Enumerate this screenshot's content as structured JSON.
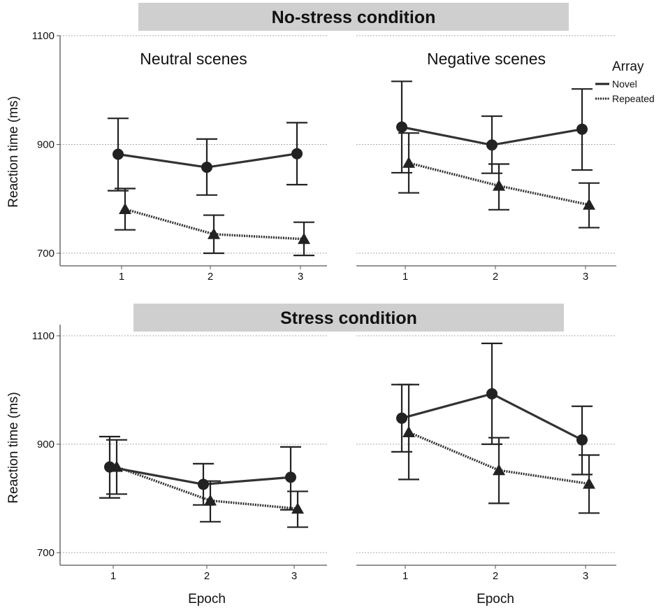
{
  "banners": [
    "No-stress condition",
    "Stress condition"
  ],
  "legend": {
    "title": "Array",
    "entries": [
      "Novel",
      "Repeated"
    ]
  },
  "y_axis_label": "Reaction time (ms)",
  "x_axis_label": "Epoch",
  "colors": {
    "novel": "#333333",
    "repeated": "#333333",
    "banner": "#cfcfcf",
    "grid": "#aaaaaa",
    "axis": "#555555"
  },
  "chart_data": [
    {
      "type": "line",
      "condition": "No-stress condition",
      "title": "Neutral scenes",
      "x": [
        1,
        2,
        3
      ],
      "ylim": [
        700,
        1100
      ],
      "yticks": [
        700,
        900,
        1100
      ],
      "series": [
        {
          "name": "Novel",
          "style": "solid",
          "marker": "circle",
          "values": [
            882,
            858,
            883
          ],
          "err_low": [
            815,
            807,
            826
          ],
          "err_high": [
            948,
            910,
            940
          ]
        },
        {
          "name": "Repeated",
          "style": "dotted",
          "marker": "triangle",
          "values": [
            781,
            735,
            726
          ],
          "err_low": [
            743,
            700,
            696
          ],
          "err_high": [
            819,
            770,
            757
          ]
        }
      ]
    },
    {
      "type": "line",
      "condition": "No-stress condition",
      "title": "Negative scenes",
      "x": [
        1,
        2,
        3
      ],
      "ylim": [
        700,
        1100
      ],
      "yticks": [
        700,
        900,
        1100
      ],
      "series": [
        {
          "name": "Novel",
          "style": "solid",
          "marker": "circle",
          "values": [
            932,
            899,
            928
          ],
          "err_low": [
            848,
            847,
            853
          ],
          "err_high": [
            1016,
            952,
            1002
          ]
        },
        {
          "name": "Repeated",
          "style": "dotted",
          "marker": "triangle",
          "values": [
            866,
            824,
            789
          ],
          "err_low": [
            811,
            780,
            747
          ],
          "err_high": [
            921,
            864,
            829
          ]
        }
      ]
    },
    {
      "type": "line",
      "condition": "Stress condition",
      "title": "",
      "x": [
        1,
        2,
        3
      ],
      "ylim": [
        700,
        1100
      ],
      "yticks": [
        700,
        900,
        1100
      ],
      "series": [
        {
          "name": "Novel",
          "style": "solid",
          "marker": "circle",
          "values": [
            858,
            826,
            839
          ],
          "err_low": [
            801,
            788,
            779
          ],
          "err_high": [
            914,
            864,
            895
          ]
        },
        {
          "name": "Repeated",
          "style": "dotted",
          "marker": "triangle",
          "values": [
            858,
            796,
            781
          ],
          "err_low": [
            808,
            757,
            747
          ],
          "err_high": [
            908,
            832,
            813
          ]
        }
      ]
    },
    {
      "type": "line",
      "condition": "Stress condition",
      "title": "",
      "x": [
        1,
        2,
        3
      ],
      "ylim": [
        700,
        1100
      ],
      "yticks": [
        700,
        900,
        1100
      ],
      "series": [
        {
          "name": "Novel",
          "style": "solid",
          "marker": "circle",
          "values": [
            948,
            993,
            908
          ],
          "err_low": [
            886,
            900,
            844
          ],
          "err_high": [
            1010,
            1086,
            970
          ]
        },
        {
          "name": "Repeated",
          "style": "dotted",
          "marker": "triangle",
          "values": [
            922,
            852,
            827
          ],
          "err_low": [
            835,
            791,
            773
          ],
          "err_high": [
            1010,
            912,
            880
          ]
        }
      ]
    }
  ]
}
